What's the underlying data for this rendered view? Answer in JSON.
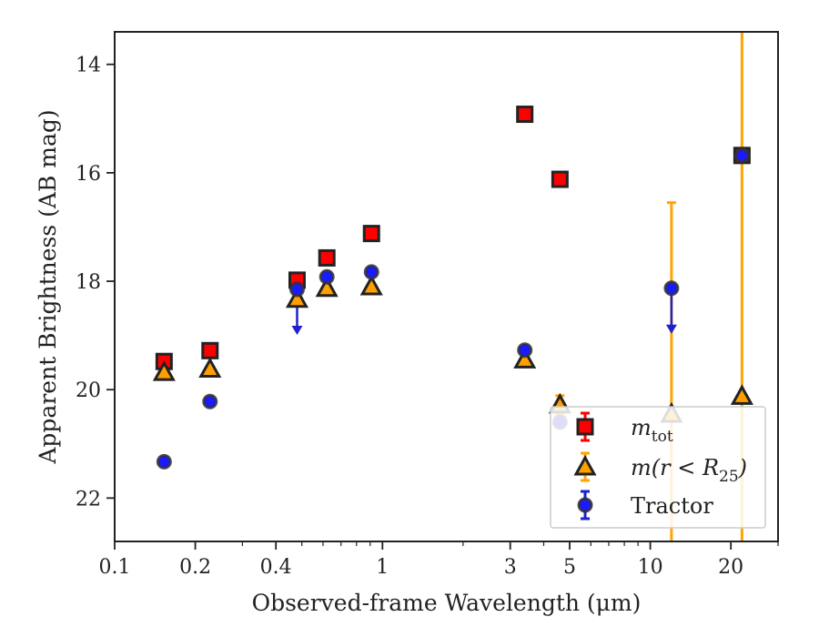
{
  "chart_data": {
    "type": "scatter",
    "xlabel": "Observed-frame Wavelength (μm)",
    "ylabel": "Apparent Brightness (AB mag)",
    "xscale": "log",
    "xlim": [
      0.1,
      30
    ],
    "ylim": [
      22.8,
      13.4
    ],
    "y_inverted": true,
    "grid": false,
    "legend_position": "lower-right",
    "x_ticks": [
      {
        "value": 0.1,
        "label": "0.1"
      },
      {
        "value": 0.2,
        "label": "0.2"
      },
      {
        "value": 0.4,
        "label": "0.4"
      },
      {
        "value": 1,
        "label": "1"
      },
      {
        "value": 3,
        "label": "3"
      },
      {
        "value": 5,
        "label": "5"
      },
      {
        "value": 10,
        "label": "10"
      },
      {
        "value": 20,
        "label": "20"
      }
    ],
    "y_ticks": [
      {
        "value": 14,
        "label": "14"
      },
      {
        "value": 16,
        "label": "16"
      },
      {
        "value": 18,
        "label": "18"
      },
      {
        "value": 20,
        "label": "20"
      },
      {
        "value": 22,
        "label": "22"
      }
    ],
    "series": [
      {
        "name_base": "m",
        "name_sub": "tot",
        "marker": "square",
        "color": "#ff0000",
        "error_color": "#ff0000",
        "points": [
          {
            "x": 0.153,
            "y": 19.48
          },
          {
            "x": 0.227,
            "y": 19.28
          },
          {
            "x": 0.48,
            "y": 17.98
          },
          {
            "x": 0.62,
            "y": 17.57
          },
          {
            "x": 0.91,
            "y": 17.12
          },
          {
            "x": 3.4,
            "y": 14.92
          },
          {
            "x": 4.6,
            "y": 16.12
          },
          {
            "x": 22.0,
            "y": 15.68
          }
        ]
      },
      {
        "name_base": "m(r < R",
        "name_sub": "25",
        "name_tail": ")",
        "marker": "triangle",
        "color": "#ff9f00",
        "error_color": "#ffa500",
        "points": [
          {
            "x": 0.153,
            "y": 19.68
          },
          {
            "x": 0.227,
            "y": 19.62
          },
          {
            "x": 0.48,
            "y": 18.33
          },
          {
            "x": 0.62,
            "y": 18.13
          },
          {
            "x": 0.91,
            "y": 18.1
          },
          {
            "x": 3.4,
            "y": 19.45
          },
          {
            "x": 4.6,
            "y": 20.28,
            "yerr": [
              0.17,
              0.17
            ]
          },
          {
            "x": 12.0,
            "y": 20.45,
            "yerr": [
              3.9,
              3.9
            ]
          },
          {
            "x": 22.0,
            "y": 20.12,
            "yerr": [
              6.8,
              6.8
            ]
          }
        ]
      },
      {
        "name": "Tractor",
        "marker": "circle",
        "color": "#1a1aff",
        "error_color": "#2020cc",
        "points": [
          {
            "x": 0.153,
            "y": 21.33
          },
          {
            "x": 0.227,
            "y": 20.22
          },
          {
            "x": 0.48,
            "y": 18.15,
            "upper_limit": true
          },
          {
            "x": 0.62,
            "y": 17.92
          },
          {
            "x": 0.91,
            "y": 17.83
          },
          {
            "x": 3.4,
            "y": 19.27
          },
          {
            "x": 4.6,
            "y": 20.6
          },
          {
            "x": 12.0,
            "y": 18.13,
            "upper_limit": true
          },
          {
            "x": 22.0,
            "y": 15.68
          }
        ]
      }
    ]
  }
}
